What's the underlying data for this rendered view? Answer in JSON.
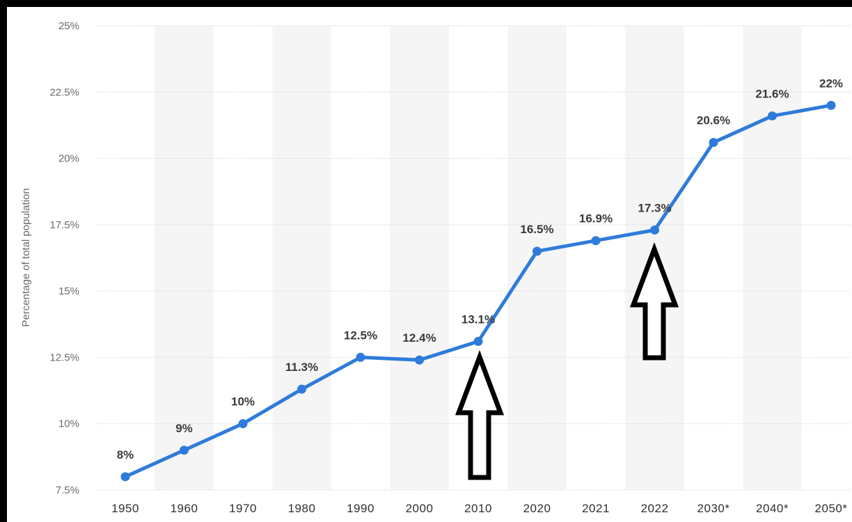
{
  "chart_data": {
    "type": "line",
    "ylabel": "Percentage of total population",
    "xlabel": "",
    "categories": [
      "1950",
      "1960",
      "1970",
      "1980",
      "1990",
      "2000",
      "2010",
      "2020",
      "2021",
      "2022",
      "2030*",
      "2040*",
      "2050*"
    ],
    "series": [
      {
        "values": [
          8,
          9,
          10,
          11.3,
          12.5,
          12.4,
          13.1,
          16.5,
          16.9,
          17.3,
          20.6,
          21.6,
          22
        ]
      }
    ],
    "data_labels": [
      "8%",
      "9%",
      "10%",
      "11.3%",
      "12.5%",
      "12.4%",
      "13.1%",
      "16.5%",
      "16.9%",
      "17.3%",
      "20.6%",
      "21.6%",
      "22%"
    ],
    "yticks": [
      7.5,
      10,
      12.5,
      15,
      17.5,
      20,
      22.5,
      25
    ],
    "ytick_labels": [
      "7.5%",
      "10%",
      "12.5%",
      "15%",
      "17.5%",
      "20%",
      "22.5%",
      "25%"
    ],
    "ylim": [
      7.5,
      25
    ],
    "grid": true,
    "annotations": [
      {
        "type": "arrow-up",
        "category": "2010"
      },
      {
        "type": "arrow-up",
        "category": "2022"
      }
    ],
    "colors": {
      "line": "#2e7bdb",
      "band": "#f5f5f5",
      "grid": "#d6d6d6",
      "arrow_fill": "#ffffff",
      "arrow_stroke": "#000000",
      "background": "#ffffff",
      "frame": "#000000"
    }
  }
}
